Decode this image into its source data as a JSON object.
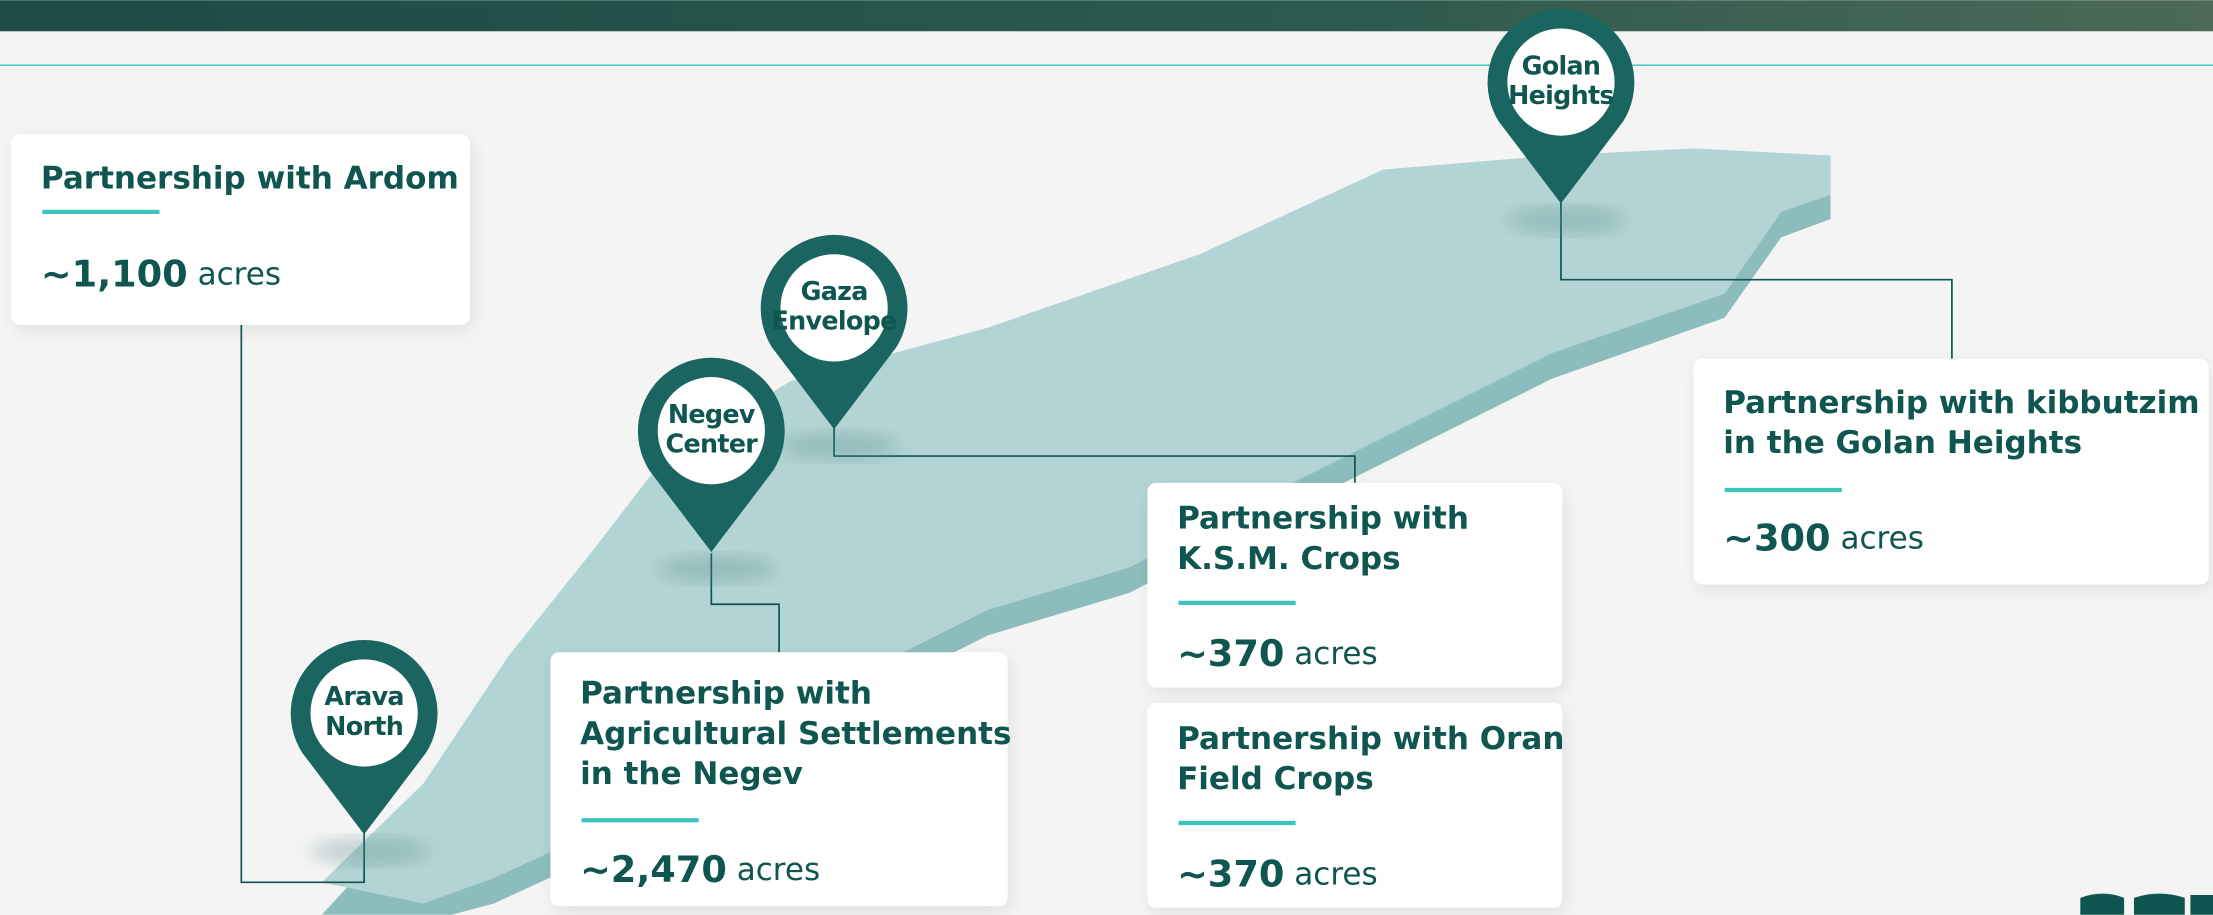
{
  "pins": [
    {
      "label_lines": [
        "Golan",
        "Heights"
      ]
    },
    {
      "label_lines": [
        "Gaza",
        "Envelope"
      ]
    },
    {
      "label_lines": [
        "Negev",
        "Center"
      ]
    },
    {
      "label_lines": [
        "Arava",
        "North"
      ]
    }
  ],
  "cards": [
    {
      "title_lines": [
        "Partnership with Ardom"
      ],
      "amount": "~1,100",
      "unit": "acres"
    },
    {
      "title_lines": [
        "Partnership with",
        "Agricultural Settlements",
        "in the Negev"
      ],
      "amount": "~2,470",
      "unit": "acres"
    },
    {
      "title_lines": [
        "Partnership with",
        "K.S.M. Crops"
      ],
      "amount": "~370",
      "unit": "acres"
    },
    {
      "title_lines": [
        "Partnership with Oran",
        "Field Crops"
      ],
      "amount": "~370",
      "unit": "acres"
    },
    {
      "title_lines": [
        "Partnership with kibbutzim",
        "in the Golan Heights"
      ],
      "amount": "~300",
      "unit": "acres"
    }
  ]
}
